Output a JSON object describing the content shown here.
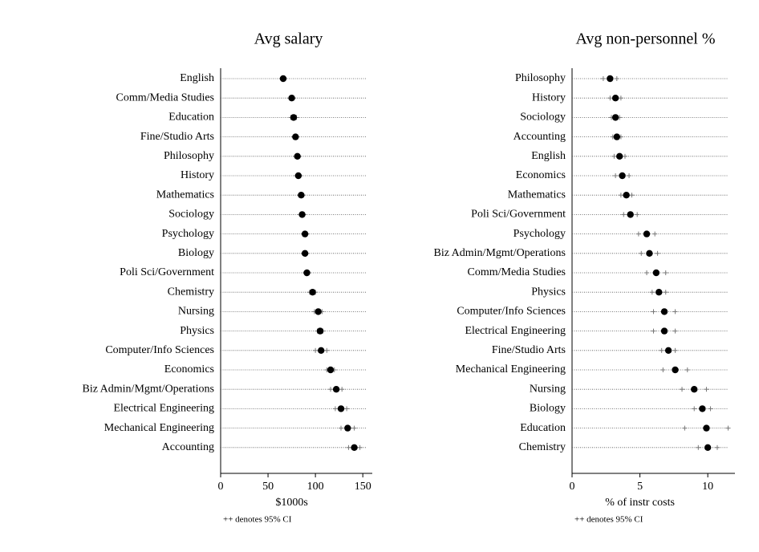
{
  "chart_data": [
    {
      "type": "dot",
      "title": "Avg salary",
      "xlabel": "$1000s",
      "note": "++ denotes 95% CI",
      "categories": [
        "English",
        "Comm/Media Studies",
        "Education",
        "Fine/Studio Arts",
        "Philosophy",
        "History",
        "Mathematics",
        "Sociology",
        "Psychology",
        "Biology",
        "Poli Sci/Government",
        "Chemistry",
        "Nursing",
        "Physics",
        "Computer/Info Sciences",
        "Economics",
        "Biz Admin/Mgmt/Operations",
        "Electrical Engineering",
        "Mechanical Engineering",
        "Accounting"
      ],
      "values": [
        66,
        75,
        77,
        79,
        81,
        82,
        85,
        86,
        89,
        89,
        91,
        97,
        103,
        105,
        106,
        116,
        122,
        127,
        134,
        141
      ],
      "errors": [
        2,
        2,
        3,
        2,
        2,
        2,
        2,
        2,
        2,
        2,
        2,
        3,
        4,
        3,
        6,
        4,
        6,
        6,
        7,
        6
      ],
      "color": "#000000",
      "xlim": [
        0,
        160
      ],
      "xticks": [
        0,
        50,
        100,
        150
      ]
    },
    {
      "type": "dot",
      "title": "Avg non-personnel %",
      "xlabel": "% of instr costs",
      "note": "++ denotes 95% CI",
      "categories": [
        "Philosophy",
        "History",
        "Sociology",
        "Accounting",
        "English",
        "Economics",
        "Mathematics",
        "Poli Sci/Government",
        "Psychology",
        "Biz Admin/Mgmt/Operations",
        "Comm/Media Studies",
        "Physics",
        "Computer/Info Sciences",
        "Electrical Engineering",
        "Fine/Studio Arts",
        "Mechanical Engineering",
        "Nursing",
        "Biology",
        "Education",
        "Chemistry"
      ],
      "values": [
        2.8,
        3.2,
        3.2,
        3.3,
        3.5,
        3.7,
        4.0,
        4.3,
        5.5,
        5.7,
        6.2,
        6.4,
        6.8,
        6.8,
        7.1,
        7.6,
        9.0,
        9.6,
        9.9,
        10.0
      ],
      "errors": [
        0.5,
        0.4,
        0.3,
        0.3,
        0.4,
        0.5,
        0.4,
        0.5,
        0.6,
        0.6,
        0.7,
        0.5,
        0.8,
        0.8,
        0.5,
        0.9,
        0.9,
        0.6,
        1.6,
        0.7
      ],
      "color": "#000000",
      "xlim": [
        0,
        12
      ],
      "xticks": [
        0,
        5,
        10
      ]
    }
  ]
}
